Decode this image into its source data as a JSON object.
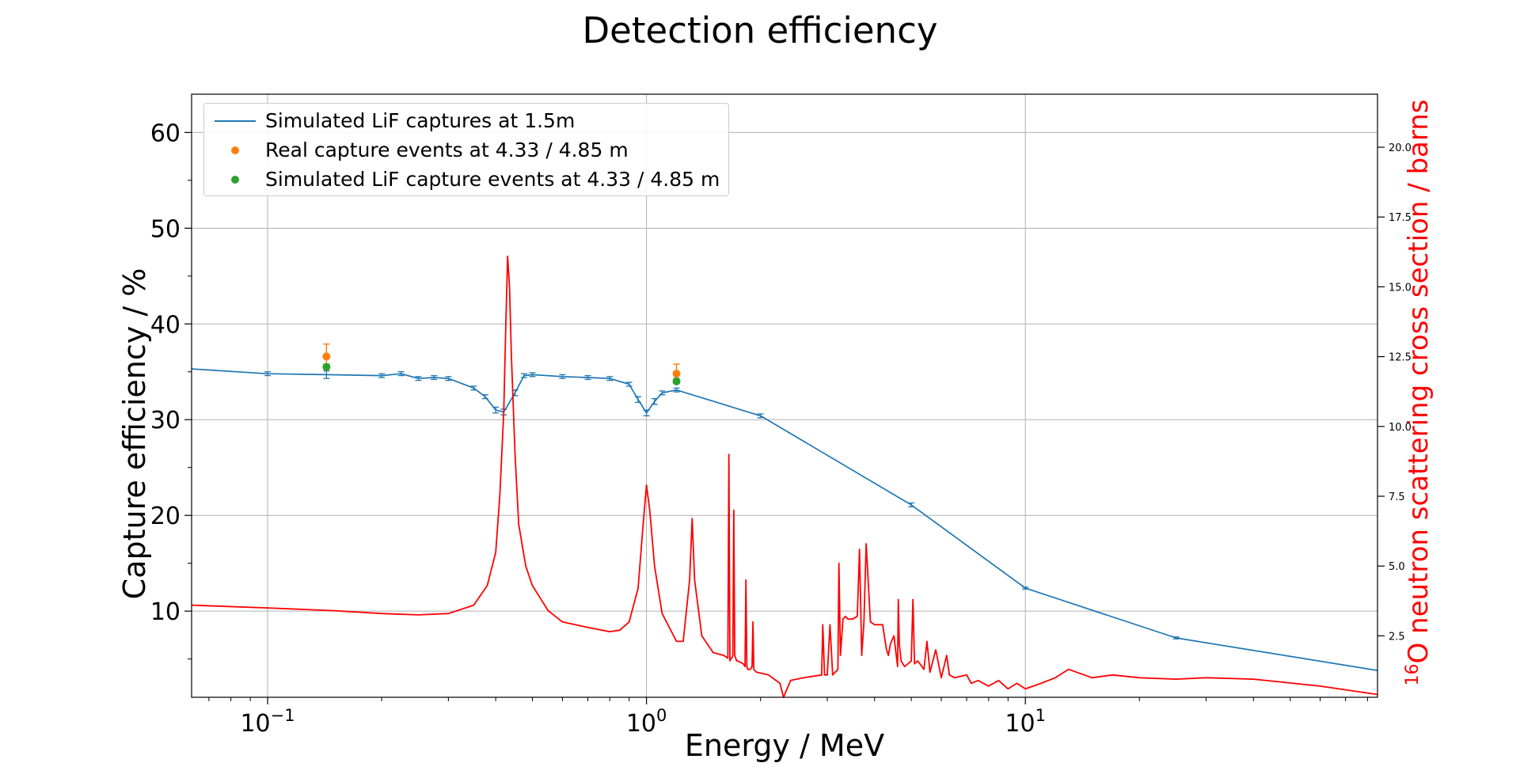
{
  "chart_data": {
    "type": "line",
    "title": "Detection efficiency",
    "xlabel": "Energy / MeV",
    "ylabel": "Capture efficiency / %",
    "y2label_sup": "16",
    "y2label_rest": "O neutron scattering cross section / barns",
    "x_scale": "log",
    "xlim": [
      0.063,
      85
    ],
    "ylim": [
      1,
      64
    ],
    "y2lim": [
      0.3,
      21.9
    ],
    "x_ticks": [
      {
        "value": 0.1,
        "base": "10",
        "exp": "−1"
      },
      {
        "value": 1,
        "base": "10",
        "exp": "0"
      },
      {
        "value": 10,
        "base": "10",
        "exp": "1"
      }
    ],
    "y_ticks": [
      "10",
      "20",
      "30",
      "40",
      "50",
      "60"
    ],
    "y2_ticks": [
      "2.5",
      "5.0",
      "7.5",
      "10.0",
      "12.5",
      "15.0",
      "17.5",
      "20.0"
    ],
    "grid": true,
    "legend_position": "upper-left",
    "series": [
      {
        "name": "Simulated LiF captures at 1.5m",
        "color": "#1f77b4",
        "axis": "left",
        "style": "line",
        "x": [
          0.063,
          0.1,
          0.143,
          0.2,
          0.225,
          0.25,
          0.275,
          0.3,
          0.35,
          0.375,
          0.4,
          0.42,
          0.45,
          0.475,
          0.5,
          0.6,
          0.7,
          0.8,
          0.9,
          0.95,
          1.0,
          1.05,
          1.1,
          1.2,
          2.0,
          5.0,
          10.0,
          25.0,
          85.0
        ],
        "y": [
          35.3,
          34.8,
          34.7,
          34.6,
          34.8,
          34.3,
          34.4,
          34.3,
          33.3,
          32.4,
          31.0,
          30.8,
          32.8,
          34.6,
          34.7,
          34.5,
          34.4,
          34.3,
          33.7,
          32.1,
          30.7,
          31.9,
          32.8,
          33.1,
          30.4,
          21.1,
          12.4,
          7.2,
          3.8
        ],
        "err": [
          0,
          0.2,
          0.4,
          0.2,
          0.2,
          0.2,
          0.2,
          0.2,
          0.2,
          0.2,
          0.3,
          0.3,
          0.3,
          0.2,
          0.2,
          0.2,
          0.2,
          0.2,
          0.2,
          0.3,
          0.3,
          0.3,
          0.2,
          0.2,
          0.2,
          0.2,
          0.1,
          0.1,
          0
        ]
      },
      {
        "name": "Real capture events at 4.33 / 4.85 m",
        "color": "#ff7f0e",
        "axis": "left",
        "style": "scatter",
        "x": [
          0.143,
          1.2
        ],
        "y": [
          36.6,
          34.8
        ],
        "err": [
          1.3,
          1.0
        ]
      },
      {
        "name": "Simulated LiF capture events at 4.33 / 4.85 m",
        "color": "#2ca02c",
        "axis": "left",
        "style": "scatter",
        "x": [
          0.143,
          1.2
        ],
        "y": [
          35.5,
          34.0
        ],
        "err": [
          0.3,
          0.3
        ]
      },
      {
        "color": "#ff0000",
        "axis": "right",
        "style": "line",
        "x": [
          0.063,
          0.1,
          0.15,
          0.2,
          0.25,
          0.3,
          0.35,
          0.38,
          0.4,
          0.41,
          0.42,
          0.425,
          0.43,
          0.435,
          0.44,
          0.45,
          0.46,
          0.48,
          0.5,
          0.55,
          0.6,
          0.7,
          0.8,
          0.85,
          0.9,
          0.95,
          0.98,
          1.0,
          1.02,
          1.05,
          1.1,
          1.2,
          1.25,
          1.3,
          1.32,
          1.34,
          1.4,
          1.5,
          1.6,
          1.64,
          1.65,
          1.66,
          1.67,
          1.68,
          1.69,
          1.7,
          1.71,
          1.72,
          1.73,
          1.74,
          1.8,
          1.82,
          1.83,
          1.84,
          1.85,
          1.88,
          1.9,
          1.91,
          1.92,
          1.95,
          2.1,
          2.25,
          2.3,
          2.35,
          2.4,
          2.6,
          2.9,
          2.92,
          2.95,
          3.0,
          3.05,
          3.1,
          3.2,
          3.22,
          3.25,
          3.3,
          3.35,
          3.4,
          3.5,
          3.6,
          3.65,
          3.7,
          3.75,
          3.8,
          3.9,
          4.0,
          4.2,
          4.3,
          4.35,
          4.4,
          4.5,
          4.6,
          4.62,
          4.65,
          4.7,
          4.8,
          4.9,
          5.0,
          5.05,
          5.1,
          5.2,
          5.4,
          5.5,
          5.6,
          5.8,
          6.0,
          6.2,
          6.3,
          6.5,
          7.0,
          7.2,
          7.5,
          8.0,
          8.5,
          9.0,
          9.5,
          10,
          11,
          12,
          13,
          15,
          17,
          20,
          25,
          30,
          40,
          60,
          85
        ],
        "y": [
          3.6,
          3.5,
          3.4,
          3.3,
          3.25,
          3.3,
          3.6,
          4.3,
          5.5,
          7.5,
          10.5,
          13.5,
          16.1,
          15.0,
          12.5,
          9.0,
          6.5,
          5.0,
          4.3,
          3.4,
          3.0,
          2.8,
          2.65,
          2.7,
          3.0,
          4.2,
          6.5,
          7.9,
          7.0,
          5.0,
          3.3,
          2.3,
          2.3,
          4.5,
          6.7,
          4.5,
          2.5,
          1.9,
          1.8,
          1.7,
          9.0,
          1.6,
          1.7,
          1.7,
          1.8,
          7.0,
          1.8,
          1.7,
          1.6,
          1.6,
          1.5,
          1.4,
          4.5,
          1.4,
          1.3,
          1.3,
          1.4,
          3.0,
          1.3,
          1.2,
          1.1,
          0.8,
          0.3,
          0.6,
          0.9,
          1.0,
          1.1,
          2.9,
          1.1,
          1.1,
          2.9,
          1.1,
          1.3,
          5.1,
          1.8,
          3.1,
          3.2,
          3.1,
          3.1,
          3.2,
          5.6,
          1.8,
          3.0,
          5.8,
          3.0,
          2.9,
          2.9,
          2.0,
          1.8,
          2.2,
          2.5,
          1.4,
          3.8,
          2.2,
          1.6,
          1.4,
          1.5,
          1.6,
          3.8,
          1.5,
          1.6,
          1.3,
          2.3,
          1.2,
          2.0,
          1.0,
          1.8,
          1.1,
          1.0,
          1.1,
          0.8,
          0.9,
          0.7,
          0.9,
          0.6,
          0.8,
          0.6,
          0.8,
          1.0,
          1.3,
          1.0,
          1.1,
          1.0,
          0.95,
          1.0,
          0.95,
          0.7,
          0.4
        ]
      }
    ]
  }
}
